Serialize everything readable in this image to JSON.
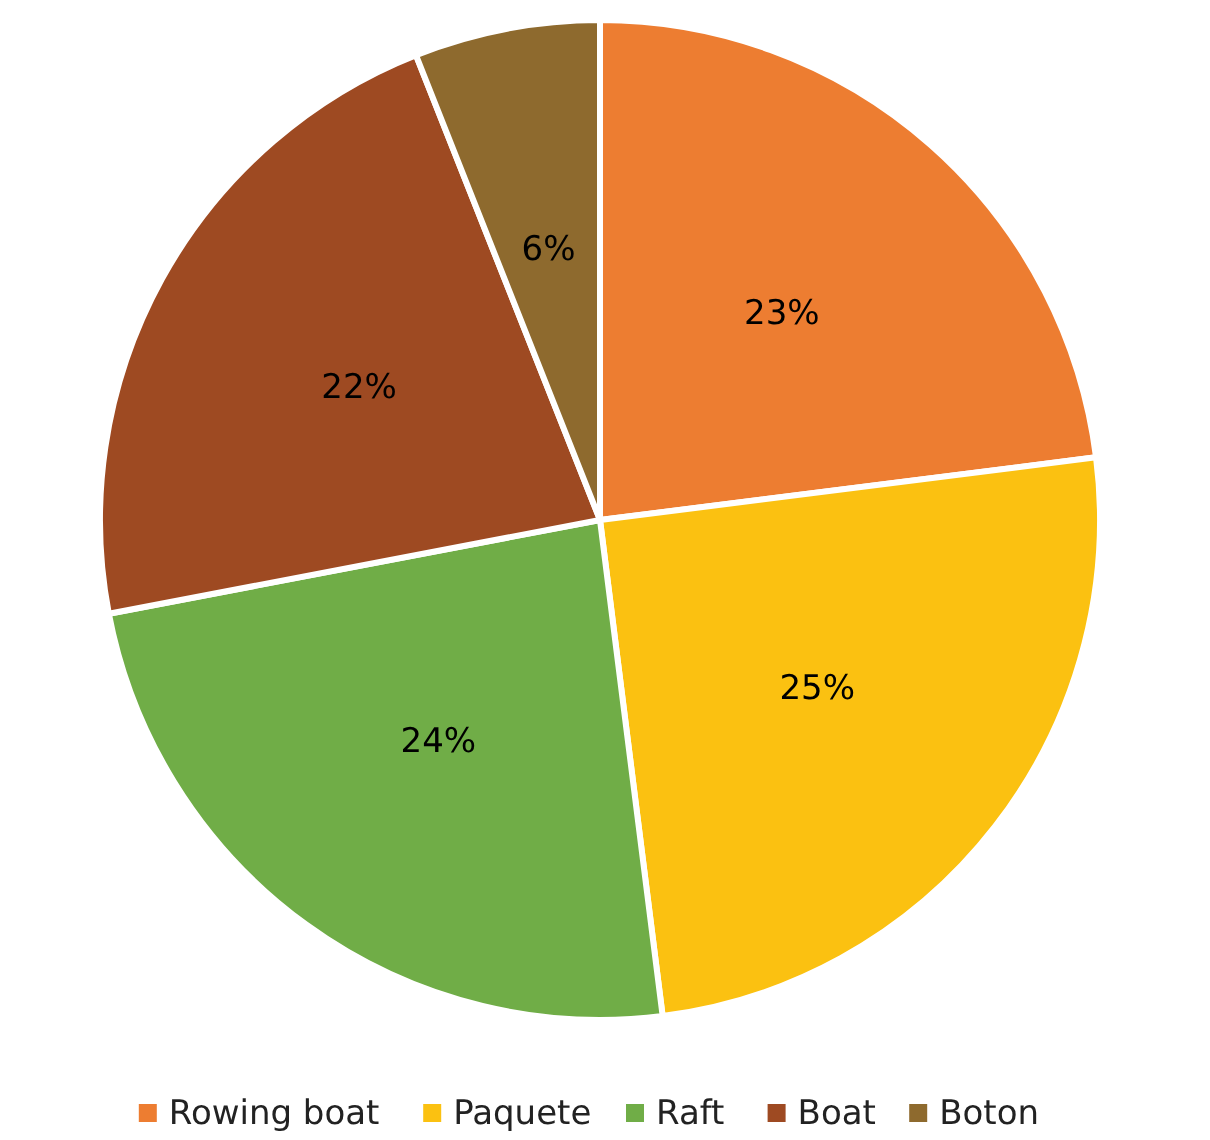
{
  "chart_data": {
    "type": "pie",
    "categories": [
      "Rowing boat",
      "Paquete",
      "Raft",
      "Boat",
      "Boton"
    ],
    "values": [
      23,
      25,
      24,
      22,
      6
    ],
    "colors": [
      "#ed7d31",
      "#fbc111",
      "#70ad47",
      "#9e4a22",
      "#8e6a2e"
    ],
    "value_labels": [
      "23%",
      "25%",
      "24%",
      "22%",
      "6%"
    ],
    "legend": "bottom"
  }
}
